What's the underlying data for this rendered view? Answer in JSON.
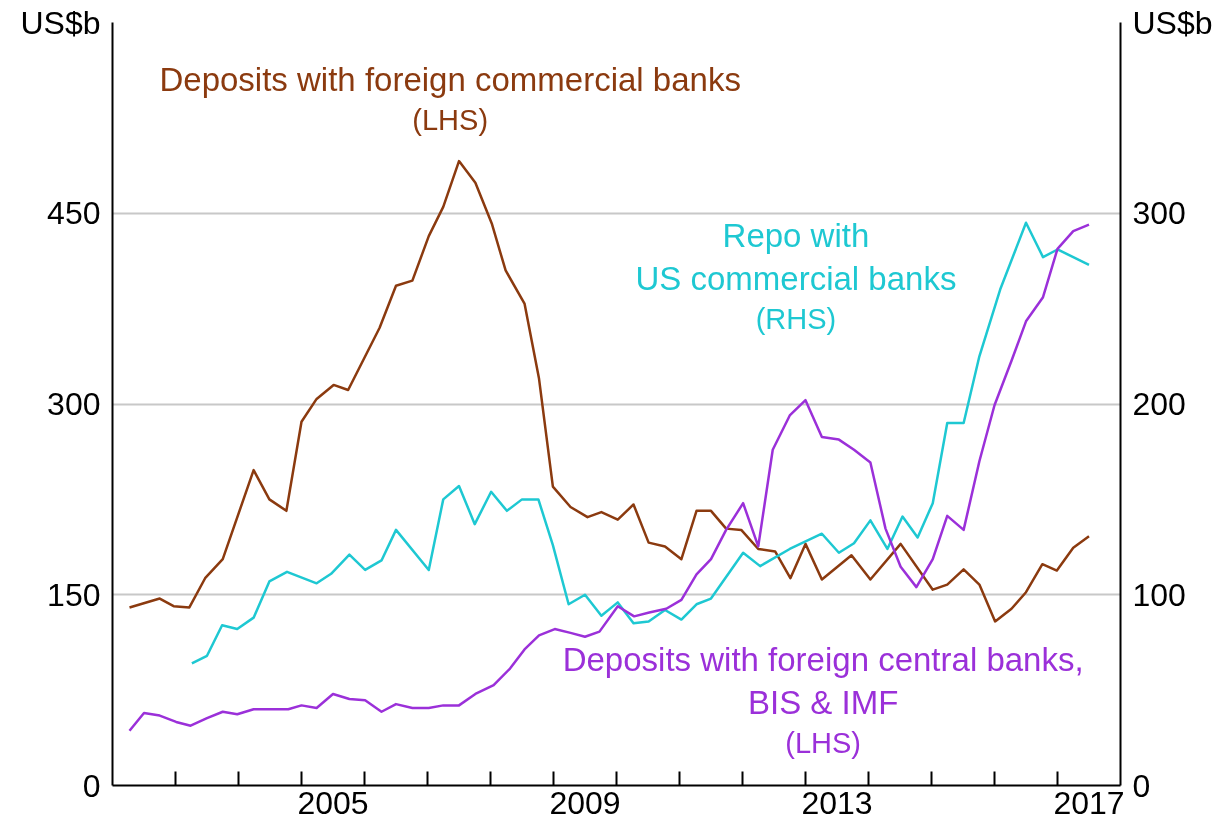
{
  "chart_data": {
    "type": "line",
    "ylabel": "US$b",
    "y2label": "US$b",
    "xlim": [
      2002,
      2018
    ],
    "ylim": [
      0,
      600
    ],
    "yticks": [
      0,
      150,
      300,
      450
    ],
    "y2lim": [
      0,
      400
    ],
    "y2ticks": [
      0,
      100,
      200,
      300
    ],
    "xticks": [
      {
        "value": 2003,
        "label": null
      },
      {
        "value": 2004,
        "label": null
      },
      {
        "value": 2005,
        "label": null
      },
      {
        "value": 2005.5,
        "label": "2005"
      },
      {
        "value": 2006,
        "label": null
      },
      {
        "value": 2007,
        "label": null
      },
      {
        "value": 2008,
        "label": null
      },
      {
        "value": 2009,
        "label": null
      },
      {
        "value": 2009.5,
        "label": "2009"
      },
      {
        "value": 2010,
        "label": null
      },
      {
        "value": 2011,
        "label": null
      },
      {
        "value": 2012,
        "label": null
      },
      {
        "value": 2013,
        "label": null
      },
      {
        "value": 2013.5,
        "label": "2013"
      },
      {
        "value": 2014,
        "label": null
      },
      {
        "value": 2015,
        "label": null
      },
      {
        "value": 2016,
        "label": null
      },
      {
        "value": 2017,
        "label": null
      },
      {
        "value": 2017.5,
        "label": "2017"
      }
    ],
    "grid": "y",
    "legend": false,
    "line_style": "solid",
    "marker": "none",
    "series": [
      {
        "name": "Deposits with foreign commercial banks\n(LHS)",
        "color": "#8b3a0f",
        "axis": "y",
        "x": [
          2002.27,
          2002.75,
          2002.97,
          2003.22,
          2003.47,
          2003.75,
          2004.24,
          2004.49,
          2004.76,
          2005.0,
          2005.24,
          2005.51,
          2005.74,
          2006.24,
          2006.5,
          2006.76,
          2007.02,
          2007.25,
          2007.5,
          2007.76,
          2008.02,
          2008.24,
          2008.54,
          2008.77,
          2008.99,
          2009.27,
          2009.54,
          2009.76,
          2010.02,
          2010.27,
          2010.51,
          2010.77,
          2011.03,
          2011.27,
          2011.5,
          2011.74,
          2011.98,
          2012.25,
          2012.52,
          2012.76,
          2013.0,
          2013.26,
          2013.73,
          2014.03,
          2014.51,
          2015.02,
          2015.25,
          2015.51,
          2015.76,
          2016.01,
          2016.27,
          2016.5,
          2016.76,
          2016.99,
          2017.25,
          2017.5
        ],
        "values": [
          140,
          147,
          141,
          140,
          163,
          178,
          248,
          225,
          216,
          286,
          304,
          315,
          311,
          360,
          393,
          397,
          432,
          455,
          491,
          474,
          442,
          405,
          379,
          320,
          235,
          219,
          211,
          215,
          209,
          221,
          191,
          188,
          178,
          216,
          216,
          202,
          201,
          186,
          184,
          163,
          190,
          162,
          181,
          162,
          190,
          154,
          158,
          170,
          158,
          129,
          139,
          152,
          174,
          169,
          187,
          196
        ]
      },
      {
        "name": "Repo with\nUS commercial banks\n(RHS)",
        "color": "#1ec8d2",
        "axis": "y2",
        "x": [
          2003.26,
          2003.5,
          2003.74,
          2003.98,
          2004.24,
          2004.49,
          2004.77,
          2005.24,
          2005.47,
          2005.76,
          2006.01,
          2006.27,
          2006.5,
          2007.02,
          2007.25,
          2007.5,
          2007.75,
          2008.01,
          2008.26,
          2008.5,
          2008.76,
          2008.99,
          2009.24,
          2009.5,
          2009.76,
          2010.02,
          2010.27,
          2010.51,
          2010.77,
          2011.03,
          2011.27,
          2011.5,
          2012.01,
          2012.28,
          2012.75,
          2013.26,
          2013.53,
          2013.77,
          2014.03,
          2014.3,
          2014.54,
          2014.78,
          2015.02,
          2015.25,
          2015.51,
          2015.76,
          2016.09,
          2016.5,
          2016.77,
          2017.0,
          2017.25,
          2017.5
        ],
        "values": [
          64,
          68,
          84,
          82,
          88,
          107,
          112,
          106,
          111,
          121,
          113,
          118,
          134,
          113,
          150,
          157,
          137,
          154,
          144,
          150,
          150,
          126,
          95,
          100,
          89,
          96,
          85,
          86,
          92,
          87,
          95,
          98,
          122,
          115,
          124,
          132,
          122,
          127,
          139,
          124,
          141,
          130,
          148,
          190,
          190,
          225,
          260,
          295,
          277,
          281,
          277,
          273
        ]
      },
      {
        "name": "Deposits with foreign central banks,\nBIS & IMF\n(LHS)",
        "color": "#9b30d9",
        "axis": "y",
        "x": [
          2002.27,
          2002.5,
          2002.75,
          2003.01,
          2003.24,
          2003.5,
          2003.75,
          2003.98,
          2004.24,
          2004.79,
          2005.0,
          2005.24,
          2005.5,
          2005.76,
          2006.01,
          2006.27,
          2006.5,
          2006.76,
          2007.02,
          2007.25,
          2007.5,
          2007.76,
          2008.05,
          2008.31,
          2008.54,
          2008.77,
          2009.02,
          2009.27,
          2009.5,
          2009.73,
          2010.02,
          2010.28,
          2010.52,
          2010.79,
          2011.03,
          2011.27,
          2011.5,
          2011.74,
          2012.01,
          2012.25,
          2012.48,
          2012.75,
          2013.0,
          2013.26,
          2013.53,
          2013.77,
          2014.03,
          2014.27,
          2014.51,
          2014.76,
          2015.02,
          2015.25,
          2015.51,
          2015.76,
          2016.0,
          2016.27,
          2016.5,
          2016.77,
          2017.0,
          2017.25,
          2017.5
        ],
        "values": [
          43,
          57,
          55,
          50,
          47,
          53,
          58,
          56,
          60,
          60,
          63,
          61,
          72,
          68,
          67,
          58,
          64,
          61,
          61,
          63,
          63,
          72,
          79,
          92,
          107,
          118,
          123,
          120,
          117,
          121,
          141,
          133,
          136,
          139,
          146,
          166,
          178,
          201,
          222,
          188,
          264,
          291,
          303,
          274,
          272,
          264,
          254,
          202,
          172,
          156,
          178,
          212,
          201,
          255,
          299,
          334,
          365,
          384,
          422,
          436,
          441
        ]
      }
    ]
  }
}
